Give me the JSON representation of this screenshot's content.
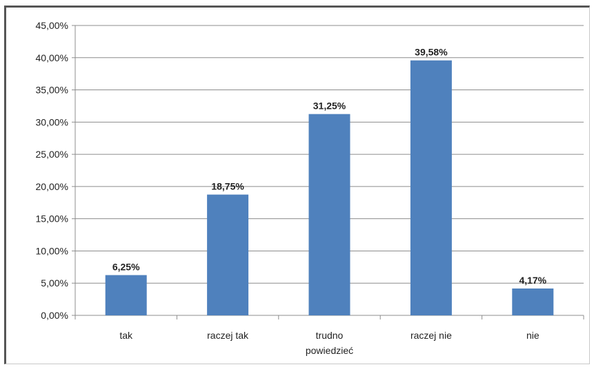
{
  "chart_data": {
    "type": "bar",
    "categories": [
      [
        "tak"
      ],
      [
        "raczej tak"
      ],
      [
        "trudno",
        "powiedzieć"
      ],
      [
        "raczej nie"
      ],
      [
        "nie"
      ]
    ],
    "values": [
      6.25,
      18.75,
      31.25,
      39.58,
      4.17
    ],
    "data_labels": [
      "6,25%",
      "18,75%",
      "31,25%",
      "39,58%",
      "4,17%"
    ],
    "ylim": [
      0,
      45
    ],
    "yticks": [
      0,
      5,
      10,
      15,
      20,
      25,
      30,
      35,
      40,
      45
    ],
    "ytick_labels": [
      "0,00%",
      "5,00%",
      "10,00%",
      "15,00%",
      "20,00%",
      "25,00%",
      "30,00%",
      "35,00%",
      "40,00%",
      "45,00%"
    ],
    "grid": true,
    "legend": "none",
    "bar_color": "#4f81bd",
    "grid_color": "#8c8c8c"
  }
}
